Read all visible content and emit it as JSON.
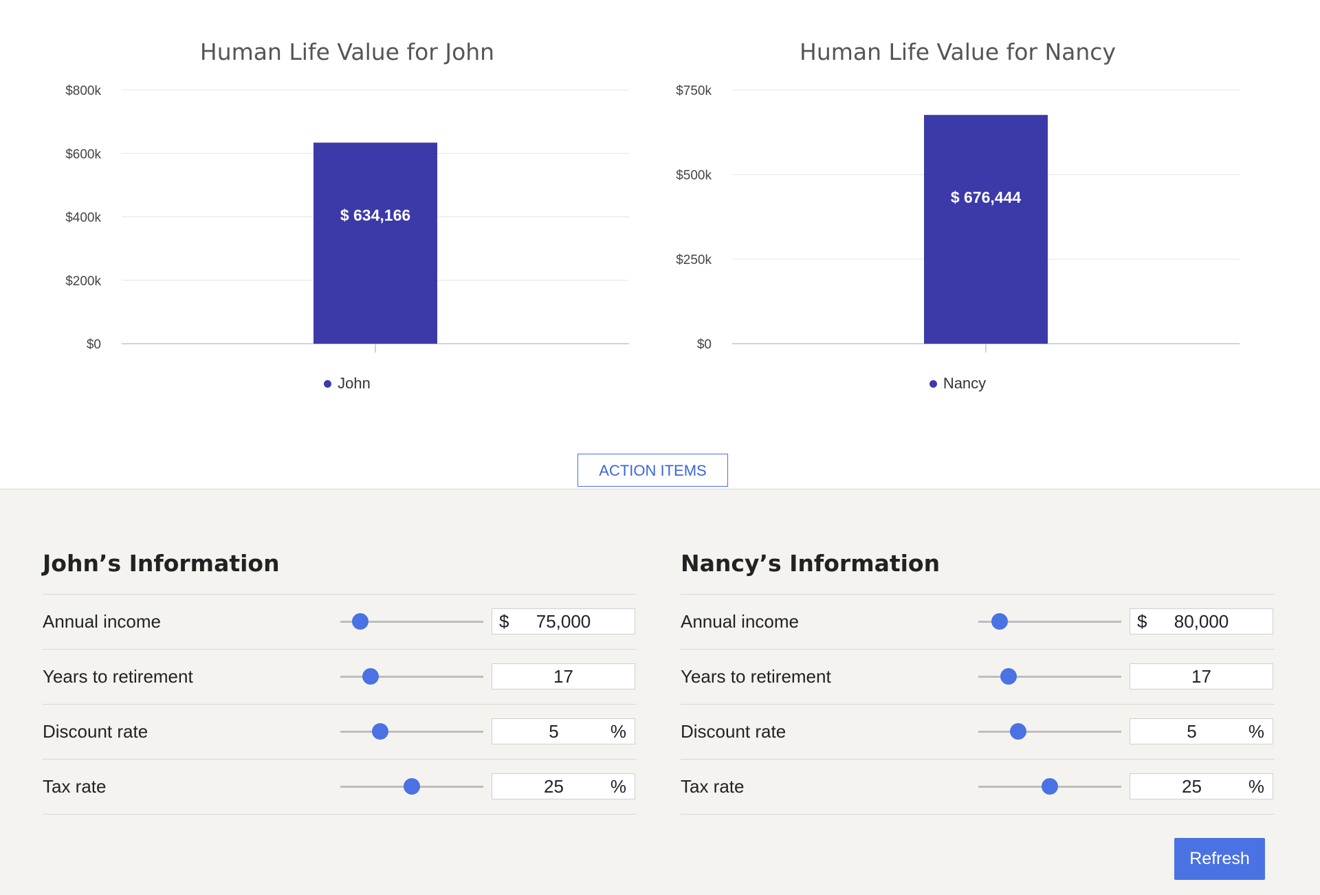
{
  "charts": [
    {
      "title": "Human Life Value for John",
      "legend": "John",
      "bar_label": "$ 634,166"
    },
    {
      "title": "Human Life Value for Nancy",
      "legend": "Nancy",
      "bar_label": "$ 676,444"
    }
  ],
  "chart_data": [
    {
      "type": "bar",
      "title": "Human Life Value for John",
      "categories": [
        "John"
      ],
      "series": [
        {
          "name": "John",
          "values": [
            634166
          ]
        }
      ],
      "ylim": [
        0,
        800000
      ],
      "yticks": [
        "$0",
        "$200k",
        "$400k",
        "$600k",
        "$800k"
      ],
      "ytick_values": [
        0,
        200000,
        400000,
        600000,
        800000
      ],
      "data_labels": [
        "$ 634,166"
      ],
      "legend_placement": "bottom",
      "grid": true,
      "color": "#3b3aa8"
    },
    {
      "type": "bar",
      "title": "Human Life Value for Nancy",
      "categories": [
        "Nancy"
      ],
      "series": [
        {
          "name": "Nancy",
          "values": [
            676444
          ]
        }
      ],
      "ylim": [
        0,
        750000
      ],
      "yticks": [
        "$0",
        "$250k",
        "$500k",
        "$750k"
      ],
      "ytick_values": [
        0,
        250000,
        500000,
        750000
      ],
      "data_labels": [
        "$ 676,444"
      ],
      "legend_placement": "bottom",
      "grid": true,
      "color": "#3b3aa8"
    }
  ],
  "action_items_label": "ACTION ITEMS",
  "people": [
    {
      "title": "John’s Information",
      "rows": [
        {
          "label": "Annual income",
          "prefix": "$",
          "value": "75,000",
          "suffix": "",
          "slider": 0.14
        },
        {
          "label": "Years to retirement",
          "prefix": "",
          "value": "17",
          "suffix": "",
          "slider": 0.21
        },
        {
          "label": "Discount rate",
          "prefix": "",
          "value": "5",
          "suffix": "%",
          "slider": 0.28
        },
        {
          "label": "Tax rate",
          "prefix": "",
          "value": "25",
          "suffix": "%",
          "slider": 0.5
        }
      ]
    },
    {
      "title": "Nancy’s Information",
      "rows": [
        {
          "label": "Annual income",
          "prefix": "$",
          "value": "80,000",
          "suffix": "",
          "slider": 0.15
        },
        {
          "label": "Years to retirement",
          "prefix": "",
          "value": "17",
          "suffix": "",
          "slider": 0.21
        },
        {
          "label": "Discount rate",
          "prefix": "",
          "value": "5",
          "suffix": "%",
          "slider": 0.28
        },
        {
          "label": "Tax rate",
          "prefix": "",
          "value": "25",
          "suffix": "%",
          "slider": 0.5
        }
      ]
    }
  ],
  "refresh_label": "Refresh",
  "colors": {
    "bar": "#3b3aa8",
    "accent": "#4a72e3",
    "panel_bg": "#f5f3f0"
  }
}
